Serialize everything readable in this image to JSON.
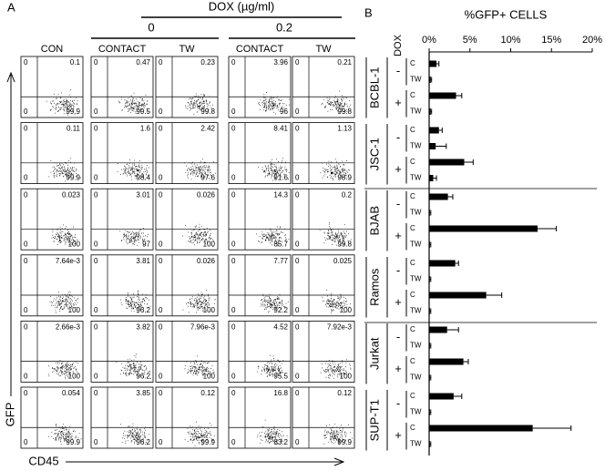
{
  "panel_a": {
    "label": "A",
    "dox_header": "DOX (µg/ml)",
    "dox_levels": [
      "0",
      "0.2"
    ],
    "columns": [
      "CON",
      "CONTACT",
      "TW",
      "CONTACT",
      "TW"
    ],
    "y_axis": "GFP",
    "x_axis": "CD45",
    "quadrant_origin": "0",
    "plots": [
      [
        [
          "0.1",
          "99.9"
        ],
        [
          "0.47",
          "99.5"
        ],
        [
          "0.23",
          "99.8"
        ],
        [
          "3.96",
          "96"
        ],
        [
          "0.21",
          "99.8"
        ]
      ],
      [
        [
          "0.11",
          "99.9"
        ],
        [
          "1.6",
          "98.4"
        ],
        [
          "2.42",
          "97.6"
        ],
        [
          "8.41",
          "91.6"
        ],
        [
          "1.13",
          "98.9"
        ]
      ],
      [
        [
          "0.023",
          "100"
        ],
        [
          "3.01",
          "97"
        ],
        [
          "0.026",
          "100"
        ],
        [
          "14.3",
          "85.7"
        ],
        [
          "0.2",
          "99.8"
        ]
      ],
      [
        [
          "7.64e-3",
          "100"
        ],
        [
          "3.81",
          "96.2"
        ],
        [
          "0.026",
          "100"
        ],
        [
          "7.77",
          "92.2"
        ],
        [
          "0.025",
          "100"
        ]
      ],
      [
        [
          "2.66e-3",
          "100"
        ],
        [
          "3.82",
          "96.2"
        ],
        [
          "7.96e-3",
          "100"
        ],
        [
          "4.52",
          "95.5"
        ],
        [
          "7.92e-3",
          "100"
        ]
      ],
      [
        [
          "0.054",
          "99.9"
        ],
        [
          "3.85",
          "96.2"
        ],
        [
          "0.12",
          "99.9"
        ],
        [
          "16.8",
          "83.2"
        ],
        [
          "0.12",
          "99.9"
        ]
      ]
    ]
  },
  "chart_data": {
    "type": "bar",
    "label": "B",
    "title": "%GFP+ CELLS",
    "dox_axis_label": "DOX",
    "groups": [
      "BCBL-1",
      "JSC-1",
      "BJAB",
      "Ramos",
      "Jurkat",
      "SUP-T1"
    ],
    "dox_labels": [
      "-",
      "+"
    ],
    "categories": [
      "C",
      "TW",
      "C",
      "TW",
      "C",
      "TW",
      "C",
      "TW",
      "C",
      "TW",
      "C",
      "TW",
      "C",
      "TW",
      "C",
      "TW",
      "C",
      "TW",
      "C",
      "TW",
      "C",
      "TW",
      "C",
      "TW"
    ],
    "values": [
      0.9,
      0.2,
      3.3,
      0.2,
      1.2,
      0.8,
      4.3,
      0.5,
      2.3,
      0.1,
      13.3,
      0.1,
      3.2,
      0.1,
      7.0,
      0.1,
      2.2,
      0.1,
      4.2,
      0.1,
      3.0,
      0.1,
      12.7,
      0.1
    ],
    "errors": [
      0.3,
      0.1,
      0.7,
      0.1,
      0.4,
      1.3,
      1.1,
      0.4,
      0.6,
      0.1,
      2.3,
      0.1,
      0.4,
      0.1,
      1.9,
      0.1,
      1.4,
      0.1,
      0.6,
      0.1,
      1.0,
      0.1,
      4.7,
      0.1
    ],
    "color": "#000000",
    "xlim": [
      0,
      20
    ],
    "xticks": [
      {
        "value": 0,
        "label": "0%"
      },
      {
        "value": 5,
        "label": "5%"
      },
      {
        "value": 10,
        "label": "10%"
      },
      {
        "value": 15,
        "label": "15%"
      },
      {
        "value": 20,
        "label": "20%"
      }
    ]
  }
}
